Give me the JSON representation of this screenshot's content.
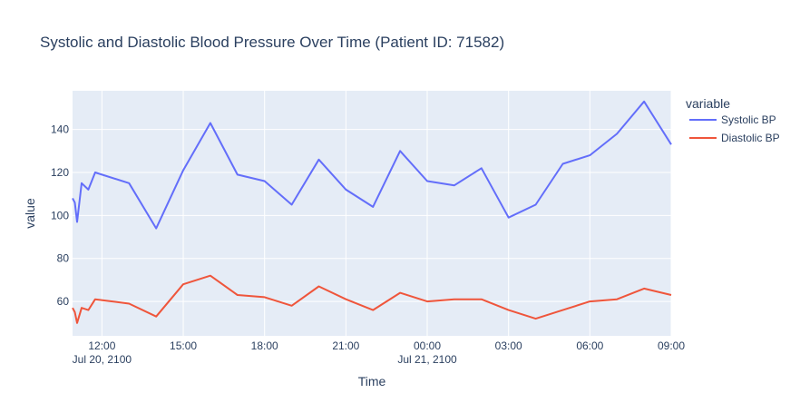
{
  "chart_data": {
    "type": "line",
    "title": "Systolic and Diastolic Blood Pressure Over Time (Patient ID: 71582)",
    "xlabel": "Time",
    "ylabel": "value",
    "legend_title": "variable",
    "legend_position": "top-right",
    "grid": true,
    "xlim": [
      "2100-07-20 10:55",
      "2100-07-21 09:00"
    ],
    "ylim": [
      44,
      158
    ],
    "y_ticks": [
      60,
      80,
      100,
      120,
      140
    ],
    "x_ticks": [
      {
        "t": "2100-07-20 12:00",
        "label": "12:00",
        "sub": "Jul 20, 2100"
      },
      {
        "t": "2100-07-20 15:00",
        "label": "15:00",
        "sub": ""
      },
      {
        "t": "2100-07-20 18:00",
        "label": "18:00",
        "sub": ""
      },
      {
        "t": "2100-07-20 21:00",
        "label": "21:00",
        "sub": ""
      },
      {
        "t": "2100-07-21 00:00",
        "label": "00:00",
        "sub": "Jul 21, 2100"
      },
      {
        "t": "2100-07-21 03:00",
        "label": "03:00",
        "sub": ""
      },
      {
        "t": "2100-07-21 06:00",
        "label": "06:00",
        "sub": ""
      },
      {
        "t": "2100-07-21 09:00",
        "label": "09:00",
        "sub": ""
      }
    ],
    "x": [
      "2100-07-20 10:55",
      "2100-07-20 11:00",
      "2100-07-20 11:05",
      "2100-07-20 11:15",
      "2100-07-20 11:30",
      "2100-07-20 11:45",
      "2100-07-20 13:00",
      "2100-07-20 14:00",
      "2100-07-20 15:00",
      "2100-07-20 16:00",
      "2100-07-20 17:00",
      "2100-07-20 18:00",
      "2100-07-20 19:00",
      "2100-07-20 20:00",
      "2100-07-20 21:00",
      "2100-07-20 22:00",
      "2100-07-20 23:00",
      "2100-07-21 00:00",
      "2100-07-21 01:00",
      "2100-07-21 02:00",
      "2100-07-21 03:00",
      "2100-07-21 04:00",
      "2100-07-21 05:00",
      "2100-07-21 06:00",
      "2100-07-21 07:00",
      "2100-07-21 08:00",
      "2100-07-21 09:00"
    ],
    "series": [
      {
        "name": "Systolic BP",
        "color": "#636efa",
        "values": [
          108,
          106,
          97,
          115,
          112,
          120,
          115,
          94,
          121,
          143,
          119,
          116,
          105,
          126,
          112,
          104,
          130,
          116,
          114,
          122,
          99,
          105,
          124,
          128,
          138,
          153,
          133
        ]
      },
      {
        "name": "Diastolic BP",
        "color": "#ef553b",
        "values": [
          57,
          55,
          50,
          57,
          56,
          61,
          59,
          53,
          68,
          72,
          63,
          62,
          58,
          67,
          61,
          56,
          64,
          60,
          61,
          61,
          56,
          52,
          56,
          60,
          61,
          66,
          63
        ]
      }
    ]
  }
}
